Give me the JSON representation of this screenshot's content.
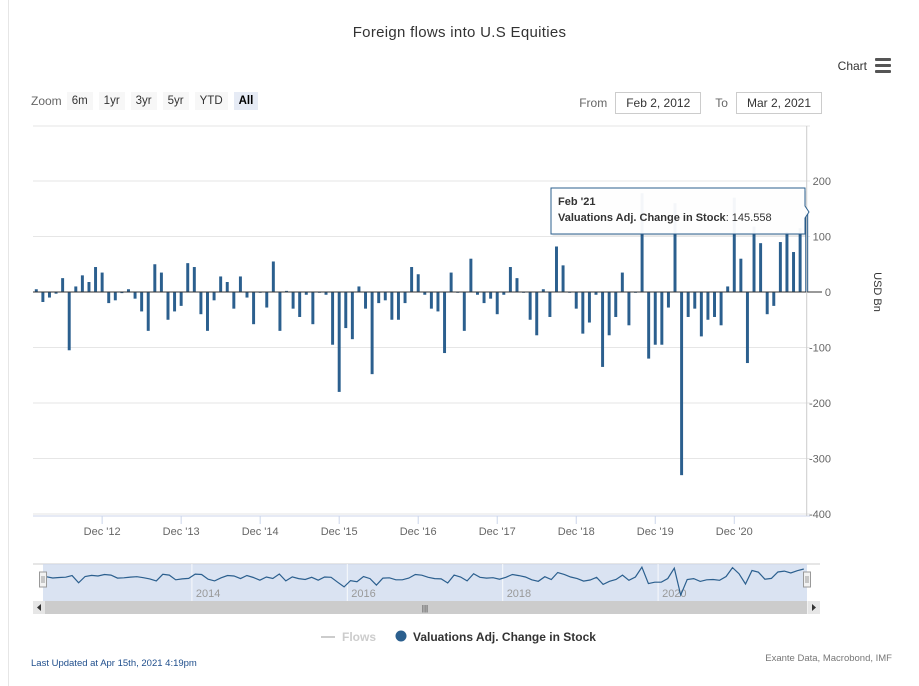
{
  "title": "Foreign flows into U.S Equities",
  "menu": {
    "label": "Chart",
    "icon": "hamburger-menu-icon"
  },
  "zoom": {
    "label": "Zoom",
    "buttons": [
      "6m",
      "1yr",
      "3yr",
      "5yr",
      "YTD",
      "All"
    ],
    "active": "All"
  },
  "range": {
    "from_label": "From",
    "from_value": "Feb 2, 2012",
    "to_label": "To",
    "to_value": "Mar 2, 2021"
  },
  "tooltip": {
    "date": "Feb '21",
    "series": "Valuations Adj. Change in Stock",
    "value": "145.558"
  },
  "legend": [
    {
      "name": "Flows",
      "color": "#cccccc",
      "active": false
    },
    {
      "name": "Valuations Adj. Change in Stock",
      "color": "#2b5f8e",
      "active": true
    }
  ],
  "navigator": {
    "labels": [
      "2014",
      "2016",
      "2018",
      "2020"
    ],
    "scrollbar_grip": "|||"
  },
  "footer": {
    "updated": "Last Updated at Apr 15th, 2021 4:19pm",
    "source": "Exante Data, Macrobond, IMF"
  },
  "colors": {
    "bar": "#2b5f8e",
    "navigator_fill": "#cdd9ee",
    "navigator_line": "#2b5f8e"
  },
  "chart_data": {
    "type": "bar",
    "title": "Foreign flows into U.S Equities",
    "ylabel": "USD Bn",
    "y_axis_side": "right",
    "ylim": [
      -400,
      300
    ],
    "yticks": [
      200,
      100,
      0,
      -100,
      -200,
      -300,
      -400
    ],
    "x_tick_labels": [
      "Dec '12",
      "Dec '13",
      "Dec '14",
      "Dec '15",
      "Dec '16",
      "Dec '17",
      "Dec '18",
      "Dec '19",
      "Dec '20"
    ],
    "x_range": [
      "2012-02",
      "2021-02"
    ],
    "grid": true,
    "legend_position": "bottom",
    "series": [
      {
        "name": "Valuations Adj. Change in Stock",
        "start": "2012-02",
        "frequency": "monthly",
        "values": [
          5,
          -18,
          -10,
          -3,
          25,
          -105,
          10,
          30,
          18,
          45,
          35,
          -20,
          -15,
          -2,
          5,
          -12,
          -35,
          -70,
          50,
          35,
          -50,
          -35,
          -25,
          52,
          45,
          -40,
          -70,
          -15,
          28,
          18,
          -30,
          28,
          -10,
          -58,
          0,
          -28,
          55,
          -70,
          2,
          -30,
          -45,
          -5,
          -58,
          0,
          -5,
          -95,
          -180,
          -65,
          -85,
          10,
          -30,
          -148,
          -20,
          -15,
          -50,
          -50,
          -20,
          45,
          32,
          -5,
          -30,
          -35,
          -110,
          35,
          0,
          -70,
          60,
          -5,
          -20,
          -12,
          -40,
          -5,
          45,
          25,
          0,
          -50,
          -78,
          5,
          -45,
          82,
          48,
          0,
          -30,
          -75,
          -55,
          -5,
          -135,
          -78,
          -45,
          35,
          -60,
          0,
          178,
          -120,
          -95,
          -95,
          -28,
          160,
          -330,
          -45,
          -30,
          -80,
          -50,
          -45,
          -60,
          10,
          170,
          60,
          -128,
          118,
          88,
          -40,
          -25,
          90,
          108,
          72,
          115,
          145.558
        ]
      },
      {
        "name": "Flows",
        "visible": false
      }
    ]
  }
}
